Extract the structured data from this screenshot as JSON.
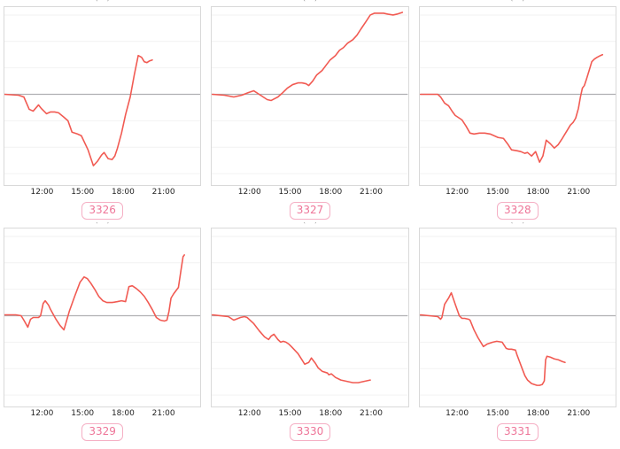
{
  "page": {
    "background": "#ffffff"
  },
  "style": {
    "line_color": "#f15a52",
    "zero_line_color": "#b0b0b3",
    "gridline_color": "#f2f2f2",
    "panel_border_color": "#d9d9d9",
    "badge_text_color": "#ee7598",
    "badge_border_color": "#f5afc4",
    "tick_text_color": "#222222"
  },
  "axis": {
    "x_tick_labels": [
      "12:00",
      "15:00",
      "18:00",
      "21:00"
    ],
    "x_tick_hours": [
      12,
      15,
      18,
      21
    ],
    "xlim_hours": [
      9.15,
      23.8
    ],
    "ylim": [
      -1.03,
      0.99
    ],
    "reference_line": 0,
    "gridline_step": 0.3,
    "y_tick_labels": []
  },
  "cells": [
    {
      "badge": "3326",
      "clipped_title": "(...)"
    },
    {
      "badge": "3327",
      "clipped_title": "(...)"
    },
    {
      "badge": "3328",
      "clipped_title": "(...)"
    },
    {
      "badge": "3329",
      "clipped_title": "(...)"
    },
    {
      "badge": "3330",
      "clipped_title": "(...)"
    },
    {
      "badge": "3331",
      "clipped_title": "(...)"
    }
  ],
  "chart_data": [
    {
      "type": "line",
      "label": "3326",
      "x_tick_labels": [
        "12:00",
        "15:00",
        "18:00",
        "21:00"
      ],
      "x_hours": [
        9.15,
        10.2,
        10.6,
        11.0,
        11.3,
        11.7,
        11.9,
        12.3,
        12.6,
        12.9,
        13.2,
        13.6,
        13.9,
        14.2,
        14.6,
        14.9,
        15.4,
        15.8,
        16.1,
        16.4,
        16.6,
        16.9,
        17.2,
        17.4,
        17.6,
        17.9,
        18.2,
        18.55,
        18.85,
        19.15,
        19.4,
        19.6,
        19.8,
        20.0,
        20.2
      ],
      "values": [
        0.0,
        -0.01,
        -0.03,
        -0.17,
        -0.19,
        -0.12,
        -0.16,
        -0.22,
        -0.2,
        -0.2,
        -0.21,
        -0.26,
        -0.3,
        -0.43,
        -0.45,
        -0.47,
        -0.63,
        -0.81,
        -0.76,
        -0.69,
        -0.66,
        -0.73,
        -0.74,
        -0.7,
        -0.61,
        -0.44,
        -0.23,
        -0.03,
        0.22,
        0.44,
        0.42,
        0.37,
        0.36,
        0.38,
        0.39
      ]
    },
    {
      "type": "line",
      "label": "3327",
      "x_tick_labels": [
        "12:00",
        "15:00",
        "18:00",
        "21:00"
      ],
      "x_hours": [
        9.2,
        10.1,
        10.8,
        11.4,
        11.9,
        12.3,
        12.7,
        13.3,
        13.6,
        14.1,
        14.4,
        14.8,
        15.2,
        15.6,
        15.9,
        16.2,
        16.4,
        16.7,
        17.0,
        17.4,
        17.7,
        18.0,
        18.4,
        18.7,
        19.0,
        19.3,
        19.7,
        20.0,
        20.3,
        20.7,
        21.0,
        21.3,
        21.7,
        22.0,
        22.3,
        22.7,
        23.0,
        23.4
      ],
      "values": [
        0.0,
        -0.01,
        -0.03,
        -0.01,
        0.02,
        0.04,
        0.0,
        -0.06,
        -0.07,
        -0.03,
        0.01,
        0.07,
        0.11,
        0.13,
        0.13,
        0.12,
        0.1,
        0.15,
        0.22,
        0.27,
        0.33,
        0.39,
        0.44,
        0.5,
        0.53,
        0.58,
        0.62,
        0.67,
        0.74,
        0.83,
        0.9,
        0.92,
        0.92,
        0.92,
        0.91,
        0.9,
        0.91,
        0.93
      ]
    },
    {
      "type": "line",
      "label": "3328",
      "x_tick_labels": [
        "12:00",
        "15:00",
        "18:00",
        "21:00"
      ],
      "x_hours": [
        9.2,
        10.5,
        10.7,
        11.0,
        11.3,
        11.6,
        11.8,
        12.0,
        12.3,
        12.6,
        12.9,
        13.2,
        13.6,
        14.0,
        14.4,
        14.7,
        15.0,
        15.4,
        15.7,
        16.0,
        16.4,
        16.7,
        17.0,
        17.2,
        17.5,
        17.8,
        18.1,
        18.35,
        18.6,
        18.9,
        19.2,
        19.5,
        19.8,
        20.2,
        20.4,
        20.6,
        20.8,
        21.0,
        21.15,
        21.3,
        21.45,
        21.6,
        21.8,
        22.0,
        22.2,
        22.4,
        22.65,
        22.8
      ],
      "values": [
        0.0,
        0.0,
        -0.03,
        -0.1,
        -0.13,
        -0.2,
        -0.24,
        -0.26,
        -0.29,
        -0.36,
        -0.44,
        -0.45,
        -0.44,
        -0.44,
        -0.45,
        -0.47,
        -0.49,
        -0.5,
        -0.56,
        -0.63,
        -0.64,
        -0.65,
        -0.67,
        -0.66,
        -0.7,
        -0.65,
        -0.77,
        -0.7,
        -0.52,
        -0.56,
        -0.61,
        -0.57,
        -0.5,
        -0.4,
        -0.35,
        -0.32,
        -0.27,
        -0.16,
        -0.03,
        0.07,
        0.1,
        0.17,
        0.27,
        0.37,
        0.4,
        0.42,
        0.44,
        0.45
      ]
    },
    {
      "type": "line",
      "label": "3329",
      "x_tick_labels": [
        "12:00",
        "15:00",
        "18:00",
        "21:00"
      ],
      "x_hours": [
        9.15,
        10.0,
        10.4,
        10.6,
        10.9,
        11.1,
        11.3,
        11.7,
        11.85,
        12.05,
        12.2,
        12.45,
        12.6,
        13.0,
        13.3,
        13.6,
        14.0,
        14.4,
        14.8,
        15.1,
        15.35,
        15.6,
        15.9,
        16.2,
        16.5,
        16.8,
        17.2,
        17.6,
        17.9,
        18.2,
        18.45,
        18.7,
        19.0,
        19.3,
        19.6,
        19.9,
        20.2,
        20.5,
        20.8,
        21.1,
        21.3,
        21.45,
        21.6,
        21.8,
        22.0,
        22.15,
        22.35,
        22.5,
        22.6
      ],
      "values": [
        0.01,
        0.01,
        0.0,
        -0.05,
        -0.13,
        -0.04,
        -0.02,
        -0.02,
        0.0,
        0.14,
        0.17,
        0.12,
        0.07,
        -0.04,
        -0.11,
        -0.16,
        0.05,
        0.22,
        0.38,
        0.44,
        0.42,
        0.37,
        0.3,
        0.22,
        0.17,
        0.15,
        0.15,
        0.16,
        0.17,
        0.16,
        0.33,
        0.34,
        0.31,
        0.27,
        0.22,
        0.15,
        0.07,
        -0.02,
        -0.05,
        -0.06,
        -0.05,
        0.05,
        0.2,
        0.25,
        0.29,
        0.32,
        0.52,
        0.67,
        0.69
      ]
    },
    {
      "type": "line",
      "label": "3330",
      "x_tick_labels": [
        "12:00",
        "15:00",
        "18:00",
        "21:00"
      ],
      "x_hours": [
        9.2,
        10.4,
        10.8,
        11.3,
        11.6,
        11.8,
        12.3,
        12.7,
        13.1,
        13.4,
        13.6,
        13.8,
        14.1,
        14.3,
        14.5,
        14.7,
        14.9,
        15.1,
        15.6,
        15.9,
        16.1,
        16.4,
        16.6,
        16.9,
        17.1,
        17.4,
        17.8,
        17.9,
        18.1,
        18.4,
        18.8,
        19.1,
        19.4,
        19.7,
        20.1,
        20.4,
        20.7,
        21.0
      ],
      "values": [
        0.01,
        -0.01,
        -0.05,
        -0.02,
        -0.01,
        -0.02,
        -0.09,
        -0.17,
        -0.24,
        -0.27,
        -0.23,
        -0.21,
        -0.27,
        -0.3,
        -0.29,
        -0.3,
        -0.32,
        -0.35,
        -0.43,
        -0.5,
        -0.55,
        -0.53,
        -0.48,
        -0.54,
        -0.59,
        -0.63,
        -0.65,
        -0.67,
        -0.66,
        -0.7,
        -0.73,
        -0.74,
        -0.75,
        -0.76,
        -0.76,
        -0.75,
        -0.74,
        -0.73
      ]
    },
    {
      "type": "line",
      "label": "3331",
      "x_tick_labels": [
        "12:00",
        "15:00",
        "18:00",
        "21:00"
      ],
      "x_hours": [
        9.2,
        10.5,
        10.7,
        10.8,
        11.0,
        11.3,
        11.5,
        11.8,
        12.1,
        12.3,
        12.5,
        12.8,
        12.9,
        13.2,
        13.5,
        13.9,
        14.2,
        14.4,
        14.6,
        14.9,
        15.3,
        15.6,
        15.8,
        16.0,
        16.3,
        16.4,
        16.6,
        16.8,
        17.0,
        17.2,
        17.5,
        17.7,
        17.9,
        18.1,
        18.3,
        18.45,
        18.55,
        18.65,
        18.9,
        19.2,
        19.5,
        19.8,
        20.0
      ],
      "values": [
        0.01,
        -0.01,
        -0.04,
        -0.02,
        0.13,
        0.2,
        0.26,
        0.13,
        0.0,
        -0.03,
        -0.03,
        -0.04,
        -0.05,
        -0.16,
        -0.25,
        -0.35,
        -0.32,
        -0.31,
        -0.3,
        -0.29,
        -0.3,
        -0.37,
        -0.38,
        -0.38,
        -0.39,
        -0.44,
        -0.52,
        -0.6,
        -0.68,
        -0.73,
        -0.77,
        -0.78,
        -0.79,
        -0.79,
        -0.78,
        -0.74,
        -0.5,
        -0.46,
        -0.47,
        -0.49,
        -0.5,
        -0.52,
        -0.53
      ]
    }
  ]
}
